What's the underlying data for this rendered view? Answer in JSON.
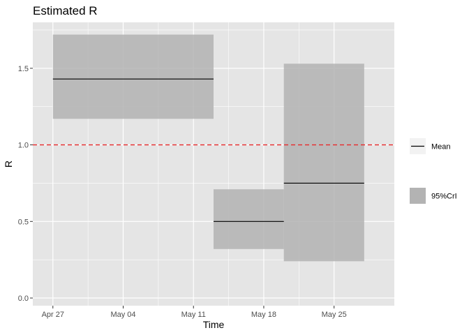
{
  "chart_data": {
    "type": "step-band",
    "title": "Estimated R",
    "xlabel": "Time",
    "ylabel": "R",
    "xlim": [
      "2020-04-25",
      "2020-05-31"
    ],
    "ylim": [
      -0.05,
      1.8
    ],
    "x_ticks": [
      {
        "date": "2020-04-27",
        "label": "Apr 27"
      },
      {
        "date": "2020-05-04",
        "label": "May 04"
      },
      {
        "date": "2020-05-11",
        "label": "May 11"
      },
      {
        "date": "2020-05-18",
        "label": "May 18"
      },
      {
        "date": "2020-05-25",
        "label": "May 25"
      }
    ],
    "y_ticks": [
      {
        "value": 0.0,
        "label": "0.0"
      },
      {
        "value": 0.5,
        "label": "0.5"
      },
      {
        "value": 1.0,
        "label": "1.0"
      },
      {
        "value": 1.5,
        "label": "1.5"
      }
    ],
    "segments": [
      {
        "start": "2020-04-27",
        "end": "2020-05-13",
        "mean": 1.43,
        "lower": 1.17,
        "upper": 1.72
      },
      {
        "start": "2020-05-13",
        "end": "2020-05-20",
        "mean": 0.5,
        "lower": 0.32,
        "upper": 0.71
      },
      {
        "start": "2020-05-20",
        "end": "2020-05-28",
        "mean": 0.75,
        "lower": 0.24,
        "upper": 1.53
      }
    ],
    "reference_line": {
      "value": 1.0,
      "style": "dashed",
      "color": "#e8292a"
    },
    "legend": [
      {
        "label": "Mean",
        "kind": "line"
      },
      {
        "label": "95%CrI",
        "kind": "fill"
      }
    ],
    "legend_position": "right",
    "grid": true,
    "colors": {
      "panel": "#e5e5e5",
      "grid": "#ffffff",
      "band": "#b3b3b3",
      "mean": "#000000"
    }
  }
}
